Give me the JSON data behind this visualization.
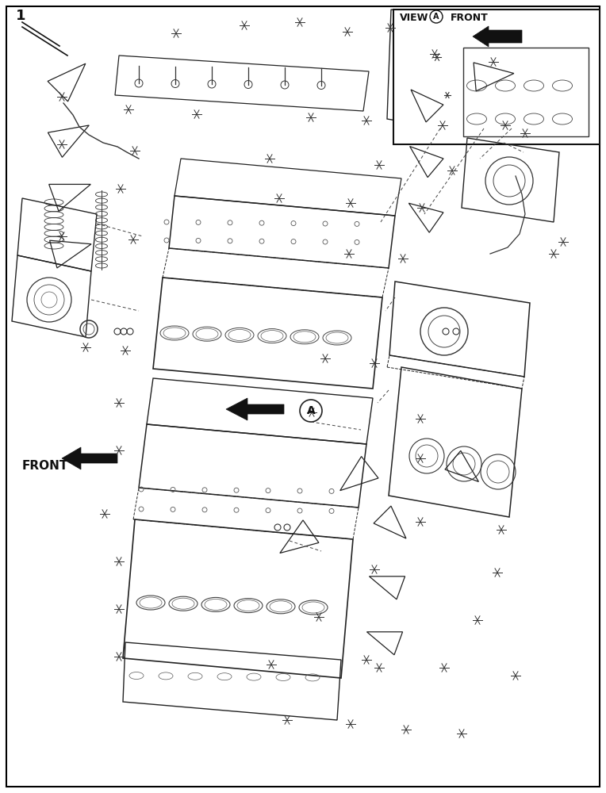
{
  "bg_color": "#ffffff",
  "border_color": "#000000",
  "line_color": "#1a1a1a",
  "fig_width": 7.64,
  "fig_height": 10.0,
  "dpi": 100,
  "title_number": "1",
  "front_label": "FRONT",
  "view_label": "VIEW",
  "circle_A_label": "A",
  "front_label2": "FRONT"
}
